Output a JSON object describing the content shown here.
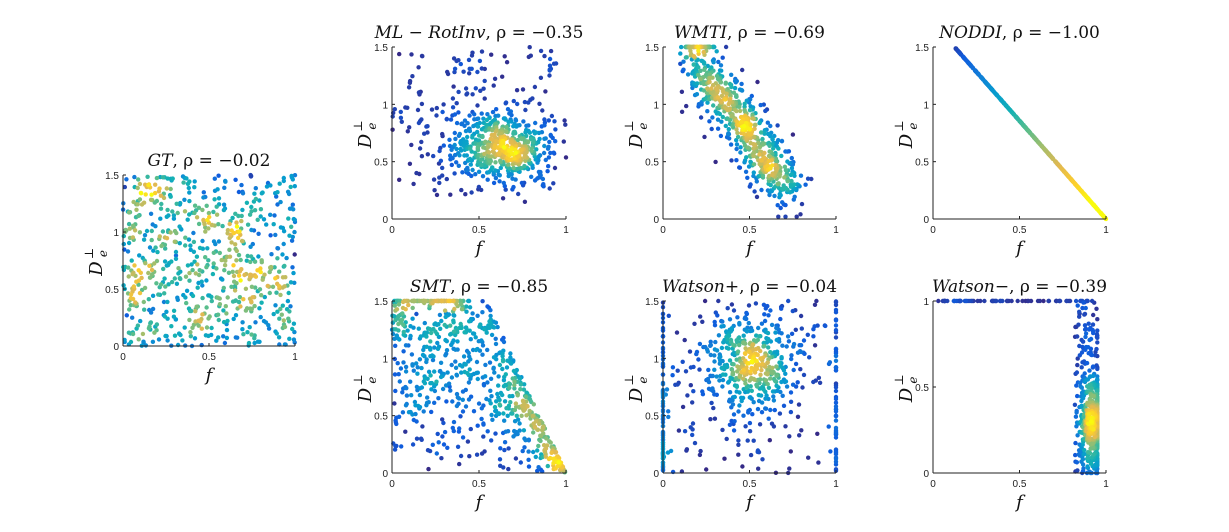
{
  "chart_data": [
    {
      "type": "scatter",
      "title_model": "GT",
      "title_rho_label": ", ρ = ",
      "rho": "−0.02",
      "xlabel": "f",
      "ylabel_base": "D",
      "ylabel_sup": "⊥",
      "ylabel_sub": "e",
      "xlim": [
        0,
        1
      ],
      "ylim": [
        0,
        1.5
      ],
      "xticks": [
        "0",
        "0.5",
        "1"
      ],
      "yticks": [
        "0",
        "0.5",
        "1",
        "1.5"
      ],
      "pattern": "uniform",
      "density_center": [
        0.45,
        0.62
      ],
      "n_points": 700
    },
    {
      "type": "scatter",
      "title_model": "ML − RotInv",
      "title_rho_label": ", ρ = ",
      "rho": "−0.35",
      "xlabel": "f",
      "ylabel_base": "D",
      "ylabel_sup": "⊥",
      "ylabel_sub": "e",
      "xlim": [
        0,
        1
      ],
      "ylim": [
        0,
        1.5
      ],
      "xticks": [
        "0",
        "0.5",
        "1"
      ],
      "yticks": [
        "0",
        "0.5",
        "1",
        "1.5"
      ],
      "pattern": "blob",
      "density_center": [
        0.62,
        0.6
      ],
      "n_points": 700
    },
    {
      "type": "scatter",
      "title_model": "WMTI",
      "title_rho_label": ", ρ = ",
      "rho": "−0.69",
      "xlabel": "f",
      "ylabel_base": "D",
      "ylabel_sup": "⊥",
      "ylabel_sub": "e",
      "xlim": [
        0,
        1
      ],
      "ylim": [
        0,
        1.5
      ],
      "xticks": [
        "0",
        "0.5",
        "1"
      ],
      "yticks": [
        "0",
        "0.5",
        "1",
        "1.5"
      ],
      "pattern": "diagonal",
      "density_center": [
        0.35,
        0.95
      ],
      "n_points": 700
    },
    {
      "type": "scatter",
      "title_model": "NODDI",
      "title_rho_label": ", ρ = ",
      "rho": "−1.00",
      "xlabel": "f",
      "ylabel_base": "D",
      "ylabel_sup": "⊥",
      "ylabel_sub": "e",
      "xlim": [
        0,
        1
      ],
      "ylim": [
        0,
        1.5
      ],
      "xticks": [
        "0",
        "0.5",
        "1"
      ],
      "yticks": [
        "0",
        "0.5",
        "1",
        "1.5"
      ],
      "pattern": "line",
      "line_from": [
        0.13,
        1.49
      ],
      "line_to": [
        1.0,
        0.0
      ],
      "n_points": 500
    },
    {
      "type": "scatter",
      "title_model": "SMT",
      "title_rho_label": ", ρ = ",
      "rho": "−0.85",
      "xlabel": "f",
      "ylabel_base": "D",
      "ylabel_sup": "⊥",
      "ylabel_sub": "e",
      "xlim": [
        0,
        1
      ],
      "ylim": [
        0,
        1.5
      ],
      "xticks": [
        "0",
        "0.5",
        "1"
      ],
      "yticks": [
        "0",
        "0.5",
        "1",
        "1.5"
      ],
      "pattern": "triangle",
      "density_center": [
        0.82,
        0.35
      ],
      "n_points": 750
    },
    {
      "type": "scatter",
      "title_model": "Watson+",
      "title_rho_label": ", ρ = ",
      "rho": "−0.04",
      "xlabel": "f",
      "ylabel_base": "D",
      "ylabel_sup": "⊥",
      "ylabel_sub": "e",
      "xlim": [
        0,
        1
      ],
      "ylim": [
        0,
        1.5
      ],
      "xticks": [
        "0",
        "0.5",
        "1"
      ],
      "yticks": [
        "0",
        "0.5",
        "1",
        "1.5"
      ],
      "pattern": "blob_edges",
      "density_center": [
        0.55,
        0.95
      ],
      "n_points": 700
    },
    {
      "type": "scatter",
      "title_model": "Watson−",
      "title_rho_label": ", ρ = ",
      "rho": "−0.39",
      "xlabel": "f",
      "ylabel_base": "D",
      "ylabel_sup": "⊥",
      "ylabel_sub": "e",
      "xlim": [
        0,
        1
      ],
      "ylim": [
        0,
        1.0
      ],
      "xticks": [
        "0",
        "0.5",
        "1"
      ],
      "yticks": [
        "0",
        "0.5",
        "1"
      ],
      "pattern": "edge_cluster",
      "density_center": [
        0.93,
        0.3
      ],
      "n_points": 600
    }
  ]
}
